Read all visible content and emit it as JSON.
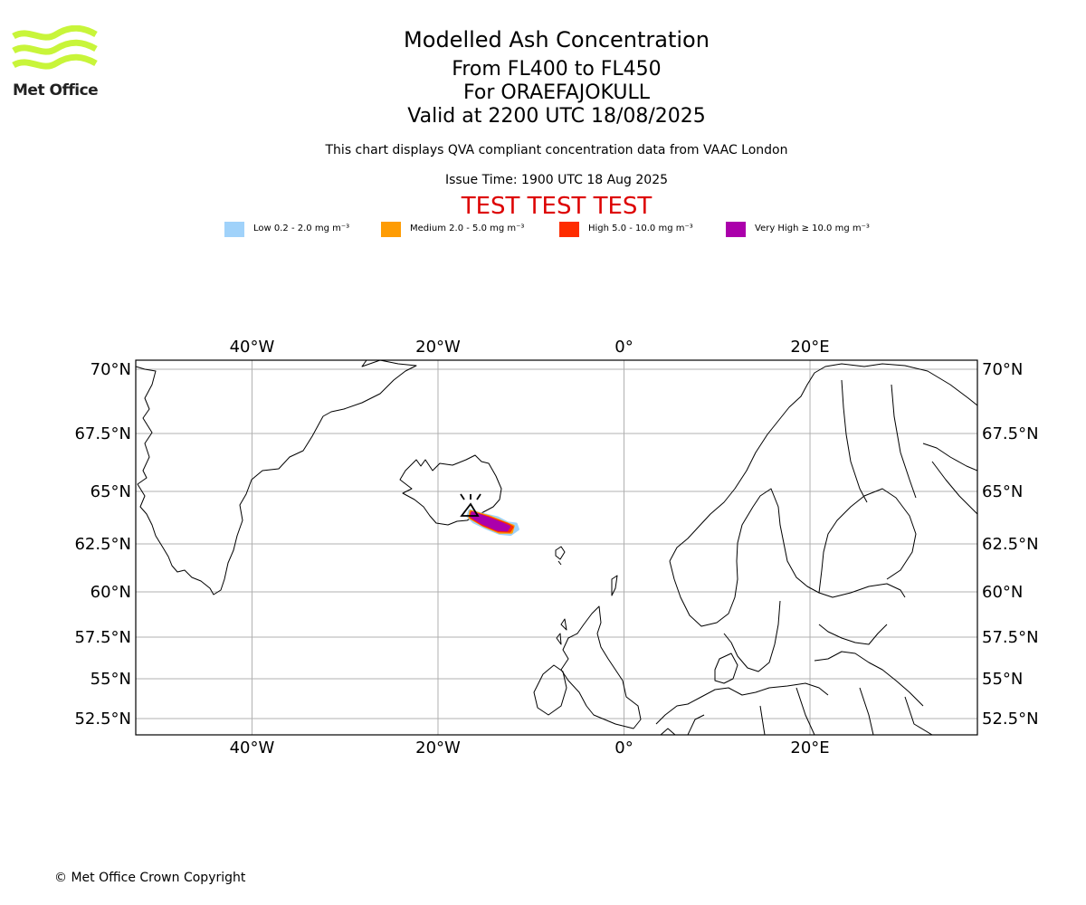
{
  "header": {
    "title": "Modelled Ash Concentration",
    "levels": "From FL400 to FL450",
    "volcano": "For ORAEFAJOKULL",
    "valid": "Valid at 2200 UTC 18/08/2025",
    "description": "This chart displays QVA compliant concentration data from VAAC London",
    "issue_time": "Issue Time: 1900 UTC 18 Aug 2025",
    "test_banner": "TEST TEST TEST",
    "test_color": "#dd0000"
  },
  "logo": {
    "text": "Met Office",
    "color": "#c8f53a",
    "icon": "met-office-wave-icon"
  },
  "legend": [
    {
      "label": "Low 0.2 - 2.0 mg m⁻³",
      "color": "#a0d2fa"
    },
    {
      "label": "Medium 2.0 - 5.0 mg m⁻³",
      "color": "#fe9c04"
    },
    {
      "label": "High 5.0 - 10.0 mg m⁻³",
      "color": "#fe2c00"
    },
    {
      "label": "Very High ≥ 10.0 mg m⁻³",
      "color": "#ab00ab"
    }
  ],
  "map": {
    "lon_range": [
      -52.5,
      38
    ],
    "lat_range": [
      51.5,
      70.3
    ],
    "lon_ticks": [
      {
        "value": -40,
        "label": "40°W"
      },
      {
        "value": -20,
        "label": "20°W"
      },
      {
        "value": 0,
        "label": "0°"
      },
      {
        "value": 20,
        "label": "20°E"
      }
    ],
    "lat_ticks": [
      {
        "value": 70,
        "label": "70°N"
      },
      {
        "value": 67.5,
        "label": "67.5°N"
      },
      {
        "value": 65,
        "label": "65°N"
      },
      {
        "value": 62.5,
        "label": "62.5°N"
      },
      {
        "value": 60,
        "label": "60°N"
      },
      {
        "value": 57.5,
        "label": "57.5°N"
      },
      {
        "value": 55,
        "label": "55°N"
      },
      {
        "value": 52.5,
        "label": "52.5°N"
      }
    ],
    "volcano_marker": {
      "lon": -16.6,
      "lat": 64.0,
      "icon": "volcano-icon"
    },
    "ash_plume": [
      {
        "level": "Low",
        "color": "#a0d2fa",
        "points": [
          [
            -16.6,
            64.1
          ],
          [
            -15.5,
            63.95
          ],
          [
            -13.6,
            63.75
          ],
          [
            -12.5,
            63.5
          ],
          [
            -11.6,
            63.45
          ],
          [
            -11.4,
            63.2
          ],
          [
            -12.2,
            62.95
          ],
          [
            -13.4,
            63.0
          ],
          [
            -14.8,
            63.25
          ],
          [
            -16.2,
            63.55
          ],
          [
            -16.8,
            63.8
          ]
        ]
      },
      {
        "level": "Medium",
        "color": "#fe9c04",
        "points": [
          [
            -16.5,
            64.05
          ],
          [
            -14.5,
            63.8
          ],
          [
            -12.8,
            63.5
          ],
          [
            -11.9,
            63.35
          ],
          [
            -12.1,
            63.05
          ],
          [
            -13.4,
            63.05
          ],
          [
            -15.0,
            63.35
          ],
          [
            -16.6,
            63.75
          ]
        ]
      },
      {
        "level": "High",
        "color": "#fe2c00",
        "points": [
          [
            -16.4,
            64.0
          ],
          [
            -14.5,
            63.75
          ],
          [
            -12.6,
            63.45
          ],
          [
            -12.0,
            63.3
          ],
          [
            -12.3,
            63.1
          ],
          [
            -13.5,
            63.12
          ],
          [
            -15.2,
            63.42
          ],
          [
            -16.5,
            63.78
          ]
        ]
      },
      {
        "level": "Very High",
        "color": "#ab00ab",
        "points": [
          [
            -16.3,
            63.98
          ],
          [
            -14.6,
            63.72
          ],
          [
            -13.0,
            63.45
          ],
          [
            -12.35,
            63.32
          ],
          [
            -12.6,
            63.15
          ],
          [
            -13.6,
            63.18
          ],
          [
            -15.2,
            63.48
          ],
          [
            -16.4,
            63.8
          ]
        ]
      }
    ]
  },
  "footer": {
    "copyright": "© Met Office Crown Copyright"
  }
}
